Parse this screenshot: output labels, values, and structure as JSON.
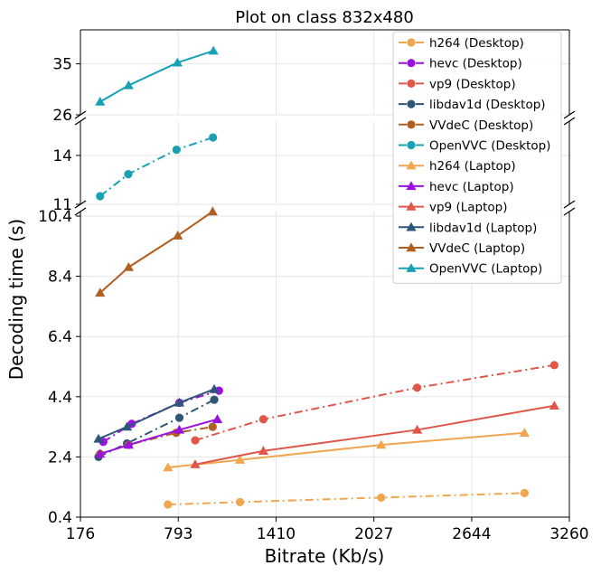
{
  "chart_data": {
    "type": "line",
    "title": "Plot on class 832x480",
    "xlabel": "Bitrate (Kb/s)",
    "ylabel": "Decoding time (s)",
    "xlim": [
      176,
      3260
    ],
    "x_ticks": [
      "176",
      "793",
      "1410",
      "2027",
      "2644",
      "3260"
    ],
    "grid": true,
    "legend_position": "top-right",
    "broken_y_axis": true,
    "panels": [
      {
        "id": "top",
        "ylim": [
          26,
          41
        ],
        "y_ticks": [
          "26",
          "35"
        ]
      },
      {
        "id": "middle",
        "ylim": [
          11,
          16.1
        ],
        "y_ticks": [
          "11",
          "14"
        ]
      },
      {
        "id": "bottom",
        "ylim": [
          0.4,
          10.55
        ],
        "y_ticks": [
          "0.4",
          "2.4",
          "4.4",
          "6.4",
          "8.4",
          "10.4"
        ]
      }
    ],
    "series": [
      {
        "name": "h264 (Desktop)",
        "color": "#f0a64f",
        "dash": "dashdot",
        "marker": "circle",
        "panel": "bottom",
        "points": [
          [
            728,
            0.82
          ],
          [
            1182,
            0.9
          ],
          [
            2073,
            1.05
          ],
          [
            2977,
            1.2
          ]
        ]
      },
      {
        "name": "hevc (Desktop)",
        "color": "#9b12e0",
        "dash": "dashdot",
        "marker": "circle",
        "panel": "bottom",
        "points": [
          [
            320,
            2.9
          ],
          [
            500,
            3.5
          ],
          [
            800,
            4.2
          ],
          [
            1050,
            4.6
          ]
        ]
      },
      {
        "name": "vp9 (Desktop)",
        "color": "#e0574a",
        "dash": "dashdot",
        "marker": "circle",
        "panel": "bottom",
        "points": [
          [
            900,
            2.95
          ],
          [
            1330,
            3.65
          ],
          [
            2300,
            4.7
          ],
          [
            3165,
            5.45
          ]
        ]
      },
      {
        "name": "libdav1d (Desktop)",
        "color": "#2e5677",
        "dash": "dashdot",
        "marker": "circle",
        "panel": "bottom",
        "points": [
          [
            290,
            2.4
          ],
          [
            470,
            2.85
          ],
          [
            800,
            3.7
          ],
          [
            1020,
            4.3
          ]
        ]
      },
      {
        "name": "VVdeC (Desktop)",
        "color": "#b05e22",
        "dash": "dashdot",
        "marker": "circle",
        "panel": "bottom",
        "points": [
          [
            300,
            2.5
          ],
          [
            480,
            2.8
          ],
          [
            780,
            3.2
          ],
          [
            1010,
            3.4
          ]
        ]
      },
      {
        "name": "OpenVVC (Desktop)",
        "color": "#18a1b3",
        "dash": "dashdot",
        "marker": "circle",
        "panel": "middle",
        "points": [
          [
            300,
            11.5
          ],
          [
            478,
            12.85
          ],
          [
            782,
            14.35
          ],
          [
            1012,
            15.1
          ]
        ]
      },
      {
        "name": "h264 (Laptop)",
        "color": "#f0a64f",
        "dash": "solid",
        "marker": "triangle",
        "panel": "bottom",
        "points": [
          [
            728,
            2.05
          ],
          [
            1182,
            2.3
          ],
          [
            2073,
            2.8
          ],
          [
            2977,
            3.2
          ]
        ]
      },
      {
        "name": "hevc (Laptop)",
        "color": "#9b12e0",
        "dash": "solid",
        "marker": "triangle",
        "panel": "bottom",
        "points": [
          [
            300,
            2.5
          ],
          [
            480,
            2.8
          ],
          [
            800,
            3.3
          ],
          [
            1040,
            3.65
          ]
        ]
      },
      {
        "name": "vp9 (Laptop)",
        "color": "#e0574a",
        "dash": "solid",
        "marker": "triangle",
        "panel": "bottom",
        "points": [
          [
            900,
            2.15
          ],
          [
            1330,
            2.6
          ],
          [
            2300,
            3.3
          ],
          [
            3165,
            4.1
          ]
        ]
      },
      {
        "name": "libdav1d (Laptop)",
        "color": "#2e5677",
        "dash": "solid",
        "marker": "triangle",
        "panel": "bottom",
        "points": [
          [
            290,
            3.0
          ],
          [
            470,
            3.4
          ],
          [
            800,
            4.2
          ],
          [
            1020,
            4.65
          ]
        ]
      },
      {
        "name": "VVdeC (Laptop)",
        "color": "#b05e22",
        "dash": "solid",
        "marker": "triangle",
        "panel": "bottom",
        "points": [
          [
            300,
            7.85
          ],
          [
            480,
            8.7
          ],
          [
            790,
            9.75
          ],
          [
            1010,
            10.55
          ]
        ]
      },
      {
        "name": "OpenVVC (Laptop)",
        "color": "#18a1b3",
        "dash": "solid",
        "marker": "triangle",
        "panel": "top",
        "points": [
          [
            300,
            28.3
          ],
          [
            480,
            31.2
          ],
          [
            788,
            35.2
          ],
          [
            1015,
            37.3
          ]
        ]
      }
    ]
  }
}
